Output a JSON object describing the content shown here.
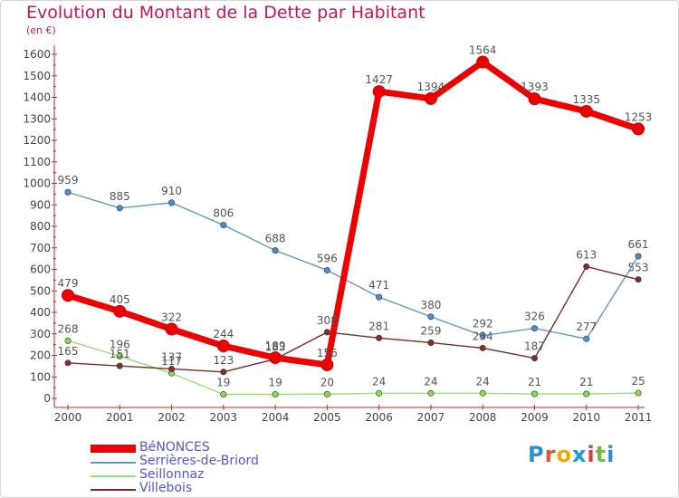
{
  "header": {
    "title": "Evolution du Montant de la Dette par Habitant",
    "unit": "(en €)"
  },
  "logo": {
    "text": "Proxiti",
    "letter_colors": [
      "#2a8fd6",
      "#e0552e",
      "#f2a900",
      "#1a9bd7",
      "#e23b3b",
      "#6cbf3a",
      "#2a8fd6"
    ]
  },
  "chart_data": {
    "type": "line",
    "x": [
      "2000",
      "2001",
      "2002",
      "2003",
      "2004",
      "2005",
      "2006",
      "2007",
      "2008",
      "2009",
      "2010",
      "2011"
    ],
    "ylim": [
      0,
      1600
    ],
    "yticks": [
      0,
      100,
      200,
      300,
      400,
      500,
      600,
      700,
      800,
      900,
      1000,
      1100,
      1200,
      1300,
      1400,
      1500,
      1600
    ],
    "grid": false,
    "legend_position": "bottom-left",
    "series": [
      {
        "name": "Serrières-de-Briord",
        "color": "#5b9bc8",
        "point_color": "#4a90d0",
        "values": [
          959,
          885,
          910,
          806,
          688,
          596,
          471,
          380,
          292,
          326,
          277,
          661
        ],
        "labels": [
          "959",
          "885",
          "910",
          "806",
          "688",
          "596",
          "471",
          "380",
          "292",
          "326",
          "277",
          "661"
        ]
      },
      {
        "name": "Seillonnaz",
        "color": "#99dd77",
        "point_color": "#88dd55",
        "values": [
          268,
          196,
          117,
          19,
          19,
          20,
          24,
          24,
          24,
          21,
          21,
          25
        ],
        "labels": [
          "268",
          "196",
          "117",
          "19",
          "19",
          "20",
          "24",
          "24",
          "24",
          "21",
          "21",
          "25"
        ]
      },
      {
        "name": "Villebois",
        "color": "#7a2a2a",
        "point_color": "#8a2a2a",
        "values": [
          165,
          151,
          137,
          123,
          183,
          308,
          281,
          259,
          234,
          187,
          613,
          553
        ],
        "labels": [
          "165",
          "151",
          "137",
          "123",
          "183",
          "308",
          "281",
          "259",
          "234",
          "187",
          "613",
          "553"
        ]
      },
      {
        "name": "BéNONCES",
        "color": "#ee0000",
        "point_color": "#ee0000",
        "values": [
          479,
          405,
          322,
          244,
          189,
          156,
          1427,
          1394,
          1564,
          1393,
          1335,
          1253
        ],
        "labels": [
          "479",
          "405",
          "322",
          "244",
          "189",
          "156",
          "1427",
          "1394",
          "1564",
          "1393",
          "1335",
          "1253"
        ]
      }
    ],
    "legend": [
      "BéNONCES",
      "Serrières-de-Briord",
      "Seillonnaz",
      "Villebois"
    ]
  }
}
